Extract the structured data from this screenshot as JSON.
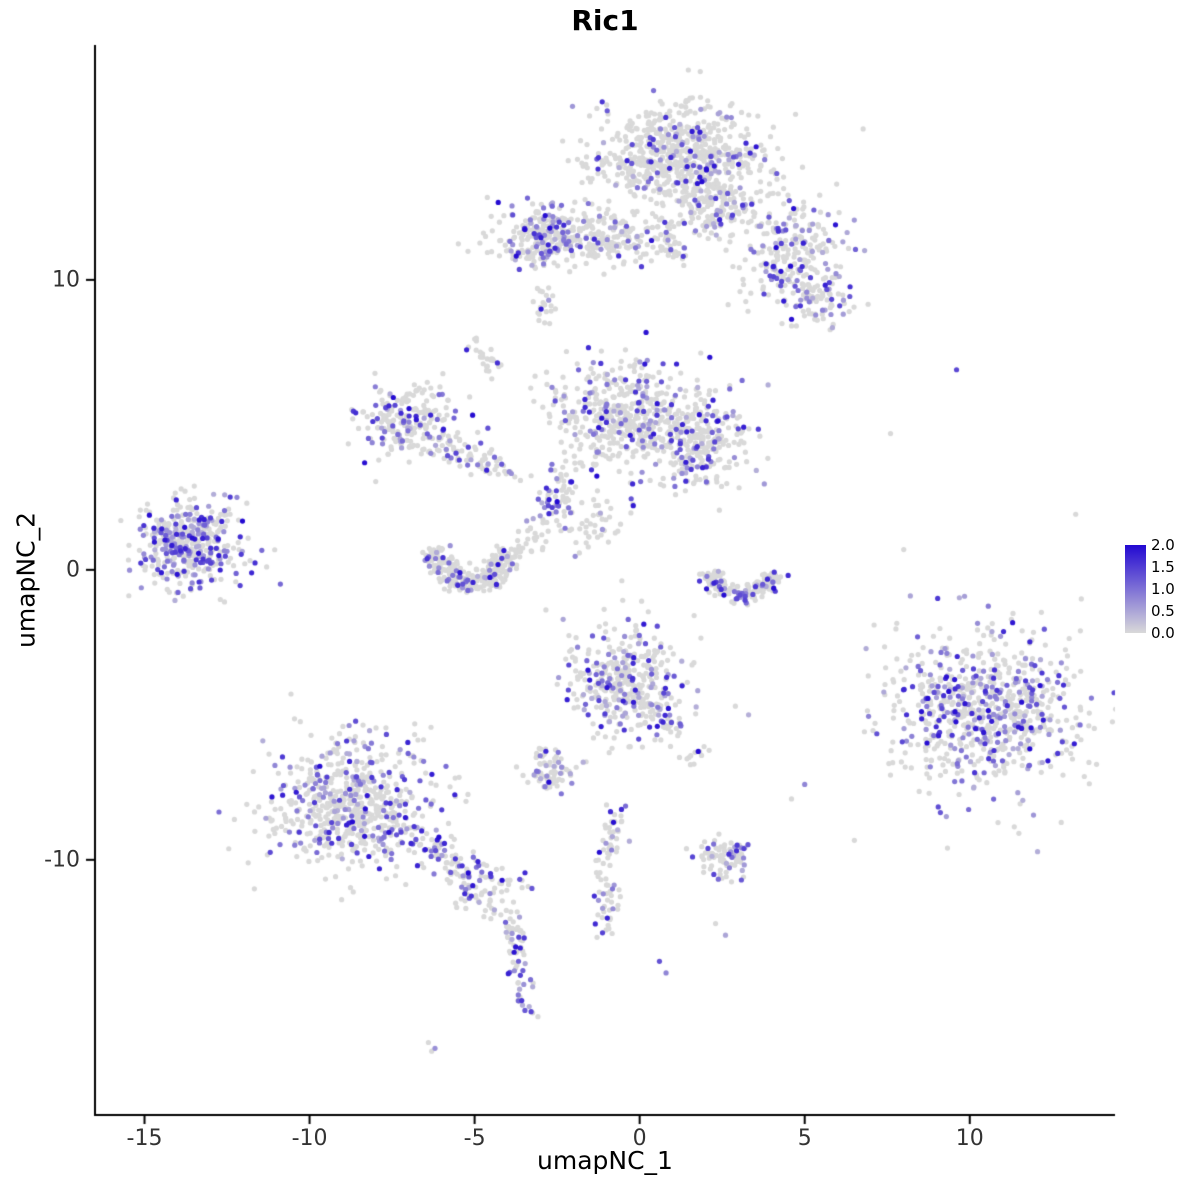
{
  "chart_data": {
    "type": "scatter",
    "title": "Ric1",
    "xlabel": "umapNC_1",
    "ylabel": "umapNC_2",
    "xlim": [
      -16.5,
      14.4
    ],
    "ylim": [
      -18.8,
      18.1
    ],
    "xticks": [
      -15,
      -10,
      -5,
      0,
      5,
      10
    ],
    "yticks": [
      -10,
      0,
      10
    ],
    "grid": false,
    "background": "#ffffff",
    "axis_color": "#000000",
    "tick_label_color": "#333333",
    "legend": {
      "position": "right",
      "ticks": [
        "2.0",
        "1.5",
        "1.0",
        "0.5",
        "0.0"
      ],
      "min": 0,
      "max": 2,
      "low_color": "#d9d9d9",
      "high_color": "#2309d2"
    },
    "seed": 42,
    "point_radius": 2.6,
    "clusters": [
      {
        "kind": "blob",
        "cx": 1.2,
        "cy": 14.3,
        "sx": 1.3,
        "sy": 0.85,
        "n": 650,
        "frac": 0.16
      },
      {
        "kind": "blob",
        "cx": 2.3,
        "cy": 12.7,
        "sx": 0.9,
        "sy": 0.55,
        "n": 180,
        "frac": 0.15
      },
      {
        "kind": "blob",
        "cx": 4.6,
        "cy": 10.8,
        "sx": 0.8,
        "sy": 1.0,
        "n": 230,
        "frac": 0.25
      },
      {
        "kind": "blob",
        "cx": 5.5,
        "cy": 9.4,
        "sx": 0.5,
        "sy": 0.45,
        "n": 80,
        "frac": 0.3
      },
      {
        "kind": "blob",
        "cx": -1.7,
        "cy": 11.5,
        "sx": 1.4,
        "sy": 0.5,
        "n": 330,
        "frac": 0.18
      },
      {
        "kind": "blob",
        "cx": -2.9,
        "cy": 11.4,
        "sx": 0.45,
        "sy": 0.5,
        "n": 110,
        "frac": 0.35
      },
      {
        "kind": "blob",
        "cx": 0.9,
        "cy": 11.2,
        "sx": 0.5,
        "sy": 0.4,
        "n": 40,
        "frac": 0.15
      },
      {
        "kind": "blob",
        "cx": -2.9,
        "cy": 9.0,
        "sx": 0.18,
        "sy": 0.3,
        "n": 22,
        "frac": 0.12
      },
      {
        "kind": "blob",
        "cx": -0.4,
        "cy": 5.3,
        "sx": 1.05,
        "sy": 0.95,
        "n": 480,
        "frac": 0.2
      },
      {
        "kind": "blob",
        "cx": 1.9,
        "cy": 4.4,
        "sx": 0.75,
        "sy": 0.8,
        "n": 260,
        "frac": 0.25
      },
      {
        "kind": "blob",
        "cx": -2.4,
        "cy": 2.5,
        "sx": 0.3,
        "sy": 0.5,
        "n": 55,
        "frac": 0.3
      },
      {
        "kind": "blob",
        "cx": -1.4,
        "cy": 1.6,
        "sx": 0.6,
        "sy": 0.6,
        "n": 45,
        "frac": 0.15
      },
      {
        "kind": "blob",
        "cx": -3.2,
        "cy": 1.1,
        "sx": 0.35,
        "sy": 0.45,
        "n": 25,
        "frac": 0.15
      },
      {
        "kind": "blob",
        "cx": -7.1,
        "cy": 5.2,
        "sx": 0.75,
        "sy": 0.65,
        "n": 210,
        "frac": 0.2
      },
      {
        "kind": "blob",
        "cx": -13.7,
        "cy": 0.9,
        "sx": 0.7,
        "sy": 0.7,
        "n": 360,
        "frac": 0.45
      },
      {
        "kind": "blob",
        "cx": -13.5,
        "cy": 1.0,
        "sx": 1.2,
        "sy": 1.1,
        "n": 50,
        "frac": 0.3
      },
      {
        "kind": "blob",
        "cx": -0.4,
        "cy": -3.7,
        "sx": 0.85,
        "sy": 0.95,
        "n": 360,
        "frac": 0.3
      },
      {
        "kind": "blob",
        "cx": -2.7,
        "cy": -6.9,
        "sx": 0.4,
        "sy": 0.35,
        "n": 75,
        "frac": 0.3
      },
      {
        "kind": "blob",
        "cx": -8.7,
        "cy": -8.0,
        "sx": 1.25,
        "sy": 1.15,
        "n": 620,
        "frac": 0.28
      },
      {
        "kind": "blob",
        "cx": 2.6,
        "cy": -9.9,
        "sx": 0.5,
        "sy": 0.35,
        "n": 85,
        "frac": 0.3
      },
      {
        "kind": "blob",
        "cx": 10.4,
        "cy": -4.9,
        "sx": 1.45,
        "sy": 1.25,
        "n": 680,
        "frac": 0.33
      },
      {
        "kind": "blob",
        "cx": 10.3,
        "cy": -4.8,
        "sx": 2.0,
        "sy": 1.7,
        "n": 70,
        "frac": 0.25
      },
      {
        "kind": "blob",
        "cx": 1.6,
        "cy": -6.4,
        "sx": 0.35,
        "sy": 0.3,
        "n": 12,
        "frac": 0.2
      },
      {
        "kind": "arc",
        "cx": -5.1,
        "cy": 0.9,
        "rx": 1.15,
        "ry": 1.3,
        "a0": 185,
        "a1": 355,
        "jr": 0.18,
        "n": 270,
        "frac": 0.18
      },
      {
        "kind": "arc",
        "cx": 3.1,
        "cy": 0.2,
        "rx": 1.05,
        "ry": 1.05,
        "a0": 195,
        "a1": 345,
        "jr": 0.15,
        "n": 185,
        "frac": 0.22
      },
      {
        "kind": "trail",
        "x0": -6.2,
        "y0": 4.5,
        "x1": -3.7,
        "y1": 3.2,
        "j": 0.28,
        "n": 85,
        "frac": 0.2
      },
      {
        "kind": "trail",
        "x0": -4.9,
        "y0": 7.9,
        "x1": -4.2,
        "y1": 6.5,
        "j": 0.18,
        "n": 26,
        "frac": 0.15
      },
      {
        "kind": "trail",
        "x0": -6.7,
        "y0": -9.3,
        "x1": -4.0,
        "y1": -11.5,
        "j": 0.4,
        "n": 150,
        "frac": 0.3
      },
      {
        "kind": "trail",
        "x0": -4.0,
        "y0": -11.6,
        "x1": -3.4,
        "y1": -15.5,
        "j": 0.18,
        "n": 65,
        "frac": 0.35
      },
      {
        "kind": "trail",
        "x0": -0.8,
        "y0": -8.4,
        "x1": -1.1,
        "y1": -12.4,
        "j": 0.25,
        "n": 80,
        "frac": 0.25
      },
      {
        "kind": "trail",
        "x0": 0.2,
        "y0": -4.9,
        "x1": 1.1,
        "y1": -5.6,
        "j": 0.25,
        "n": 40,
        "frac": 0.3
      }
    ],
    "singles": [
      [
        9.6,
        6.9,
        1.4
      ],
      [
        7.6,
        4.7,
        0
      ],
      [
        8.0,
        0.7,
        0
      ],
      [
        8.2,
        -0.9,
        0.5
      ],
      [
        5.0,
        -7.4,
        0.8
      ],
      [
        4.6,
        -7.9,
        0
      ],
      [
        2.9,
        -4.7,
        0
      ],
      [
        3.3,
        -5.0,
        0.4
      ],
      [
        2.3,
        -12.2,
        0
      ],
      [
        2.6,
        -12.6,
        0.5
      ],
      [
        0.6,
        -13.5,
        1.3
      ],
      [
        0.8,
        -13.9,
        0.8
      ],
      [
        -6.4,
        -16.3,
        0
      ],
      [
        -6.2,
        -16.5,
        0.7
      ],
      [
        -6.3,
        -16.6,
        0
      ],
      [
        -2.5,
        2.35,
        2.0
      ],
      [
        -2.65,
        2.15,
        1.5
      ],
      [
        -12.2,
        2.5,
        0.8
      ],
      [
        -11.9,
        2.3,
        0
      ],
      [
        -11.3,
        0.1,
        0
      ]
    ]
  }
}
